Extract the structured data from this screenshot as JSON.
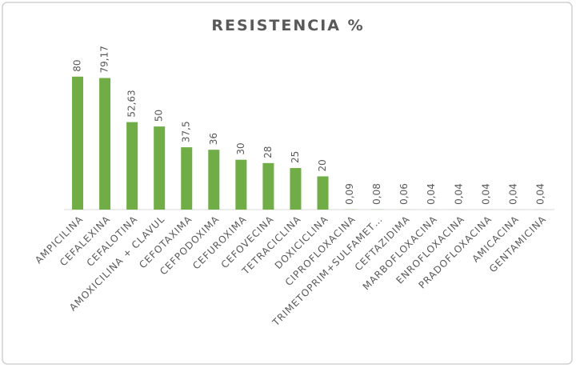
{
  "chart_data": {
    "type": "bar",
    "title": "RESISTENCIA %",
    "categories": [
      "AMPICILINA",
      "CEFALEXINA",
      "CEFALOTINA",
      "AMOXICILINA + CLAVUL",
      "CEFOTAXIMA",
      "CEFPODOXIMA",
      "CEFUROXIMA",
      "CEFOVECINA",
      "TETRACICLINA",
      "DOXICICLINA",
      "CIPROFLOXACINA",
      "TRIMETOPRIM+SULFAMET…",
      "CEFTAZIDIMA",
      "MARBOFLOXACINA",
      "ENROFLOXACINA",
      "PRADOFLOXACINA",
      "AMICACINA",
      "GENTAMICINA"
    ],
    "values": [
      80,
      79.17,
      52.63,
      50,
      37.5,
      36,
      30,
      28,
      25,
      20,
      0.09,
      0.08,
      0.06,
      0.04,
      0.04,
      0.04,
      0.04,
      0.04
    ],
    "value_labels": [
      "80",
      "79,17",
      "52,63",
      "50",
      "37,5",
      "36",
      "30",
      "28",
      "25",
      "20",
      "0,09",
      "0,08",
      "0,06",
      "0,04",
      "0,04",
      "0,04",
      "0,04",
      "0,04"
    ],
    "color": "#70ad47",
    "ylim": [
      0,
      90
    ]
  }
}
